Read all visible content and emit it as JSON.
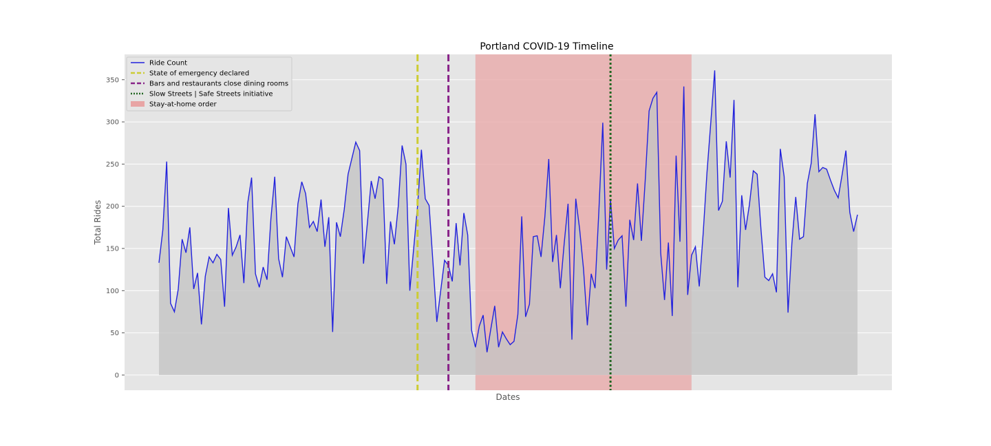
{
  "chart_data": {
    "type": "line",
    "title": "Portland COVID-19 Timeline",
    "xlabel": "Dates",
    "ylabel": "Total Rides",
    "ylim": [
      -18,
      380
    ],
    "yticks": [
      0,
      50,
      100,
      150,
      200,
      250,
      300,
      350
    ],
    "grid": true,
    "legend_position": "top-left",
    "colors": {
      "plot_bg": "#e5e5e5",
      "grid": "#ffffff",
      "line": "#2222dd",
      "fill": "#c4c4c4",
      "span": "#e8a5a5",
      "emergency": "#cccc33",
      "bars": "#882288",
      "slow_streets": "#226622"
    },
    "series": [
      {
        "name": "Ride Count",
        "values": [
          133,
          172,
          253,
          85,
          75,
          102,
          161,
          145,
          175,
          102,
          121,
          60,
          117,
          140,
          133,
          143,
          137,
          81,
          198,
          142,
          152,
          166,
          109,
          204,
          234,
          120,
          104,
          128,
          113,
          185,
          235,
          138,
          116,
          164,
          152,
          140,
          203,
          229,
          215,
          175,
          182,
          170,
          208,
          152,
          187,
          51,
          181,
          164,
          196,
          238,
          257,
          276,
          266,
          132,
          180,
          230,
          209,
          235,
          232,
          108,
          182,
          155,
          200,
          272,
          250,
          100,
          150,
          200,
          267,
          209,
          201,
          133,
          63,
          100,
          136,
          130,
          111,
          180,
          130,
          192,
          166,
          53,
          33,
          58,
          71,
          27,
          55,
          82,
          33,
          51,
          43,
          36,
          40,
          72,
          188,
          69,
          84,
          164,
          165,
          140,
          188,
          256,
          134,
          166,
          103,
          156,
          203,
          42,
          209,
          173,
          126,
          59,
          120,
          103,
          196,
          299,
          125,
          208,
          150,
          160,
          165,
          81,
          184,
          160,
          227,
          159,
          231,
          313,
          328,
          335,
          145,
          89,
          157,
          70,
          260,
          158,
          342,
          95,
          142,
          152,
          105,
          167,
          240,
          300,
          361,
          195,
          206,
          277,
          234,
          326,
          104,
          213,
          172,
          202,
          242,
          238,
          172,
          116,
          112,
          120,
          98,
          268,
          235,
          74,
          156,
          211,
          161,
          164,
          227,
          251,
          309,
          241,
          246,
          244,
          231,
          219,
          210,
          237,
          266,
          193,
          170,
          190
        ]
      }
    ],
    "events": [
      {
        "name": "State of emergency declared",
        "type": "vline",
        "index": 67,
        "style": "dashed"
      },
      {
        "name": "Bars and restaurants close dining rooms",
        "type": "vline",
        "index": 75,
        "style": "dashed"
      },
      {
        "name": "Slow Streets | Safe Streets initiative",
        "type": "vline",
        "index": 117,
        "style": "dotted"
      },
      {
        "name": "Stay-at-home order",
        "type": "span",
        "start_index": 82,
        "end_index": 138
      }
    ]
  }
}
